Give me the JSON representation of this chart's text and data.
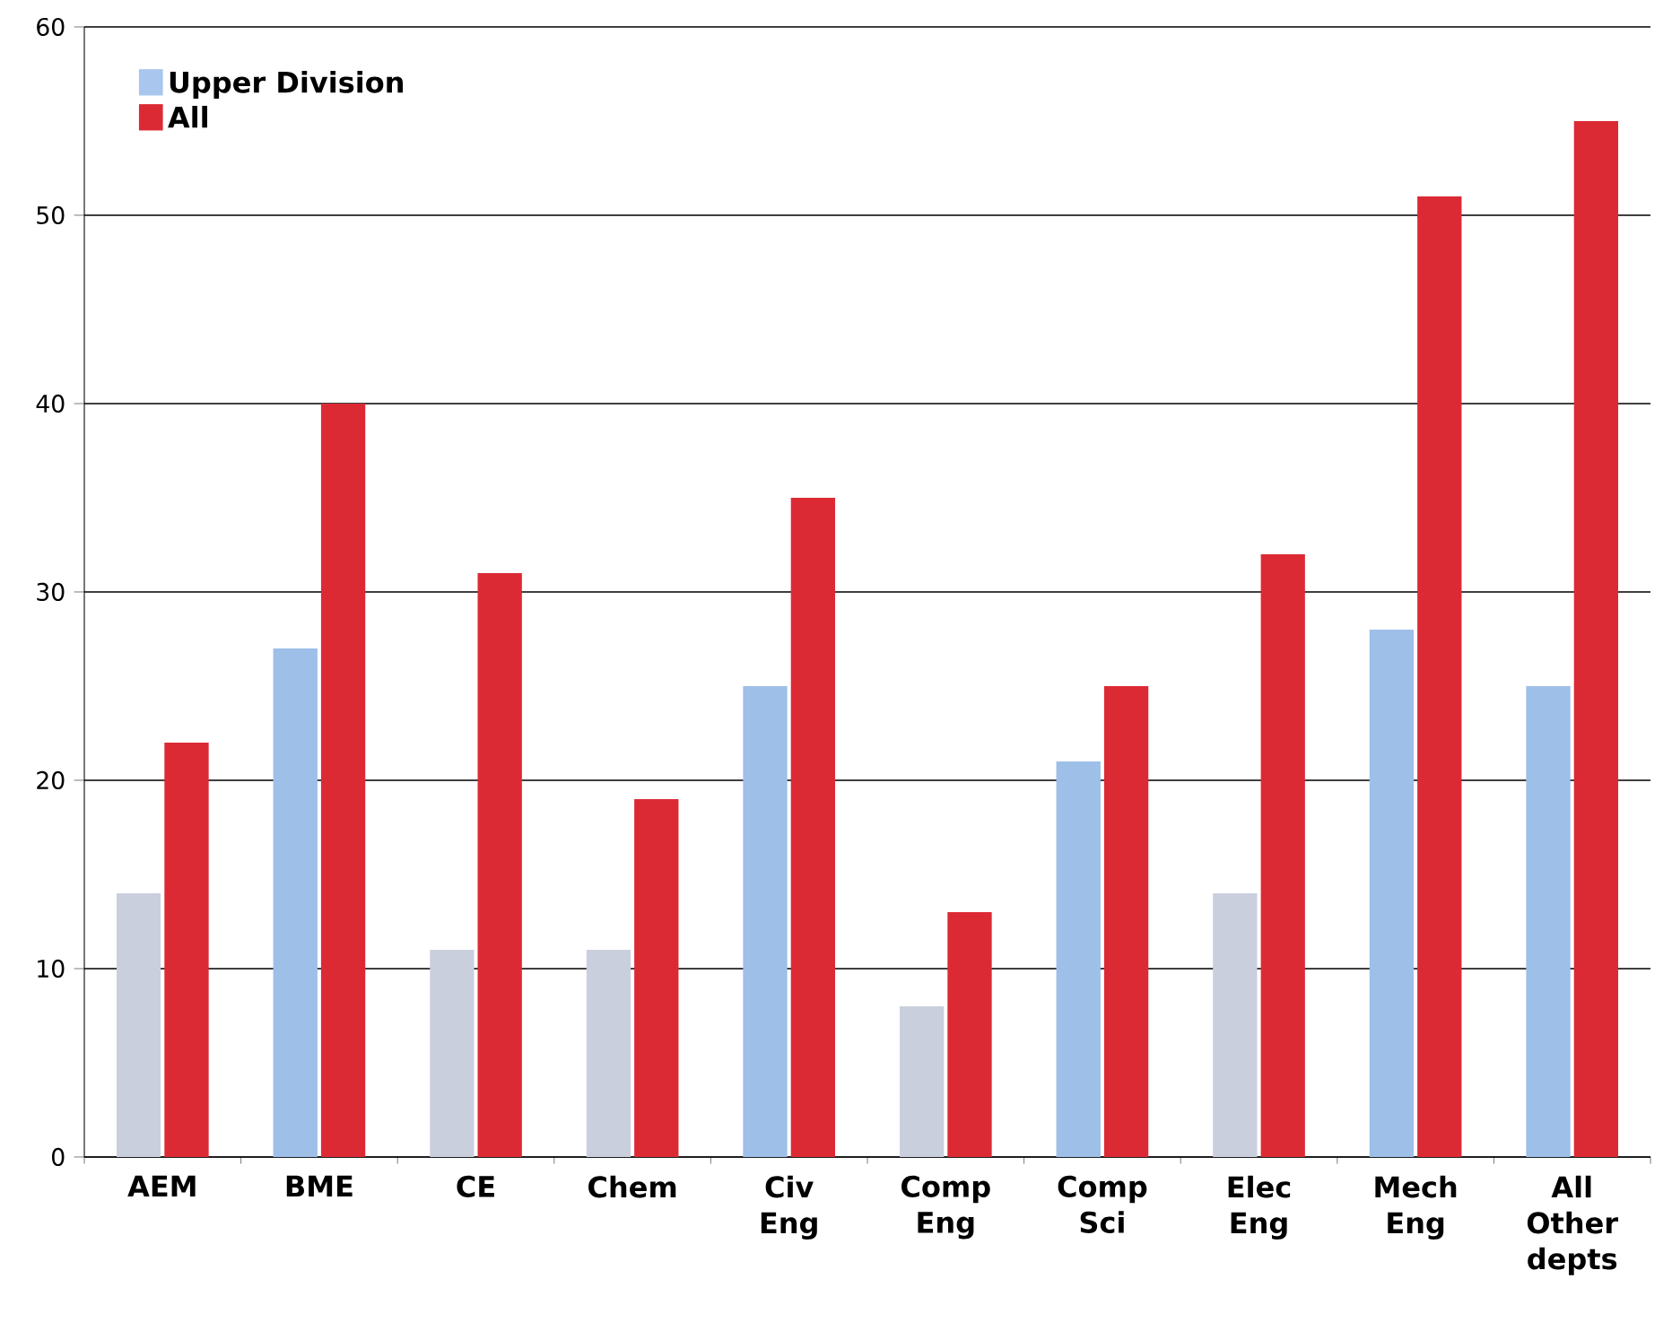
{
  "chart_data": {
    "type": "bar",
    "categories": [
      "AEM",
      "BME",
      "CE",
      "Chem",
      "Civ Eng",
      "Comp Eng",
      "Comp Sci",
      "Elec Eng",
      "Mech Eng",
      "All Other depts"
    ],
    "series": [
      {
        "name": "Upper Division",
        "color": "#a9c6ee",
        "colors": [
          "#c9cfdc",
          "#9dbfe8",
          "#c9cfdc",
          "#c9cfdc",
          "#9dbfe8",
          "#c9cfdc",
          "#9dbfe8",
          "#c9cfdc",
          "#9dbfe8",
          "#9dbfe8"
        ],
        "values": [
          14,
          27,
          11,
          11,
          25,
          8,
          21,
          14,
          28,
          25
        ]
      },
      {
        "name": "All",
        "color": "#dc2a35",
        "values": [
          22,
          40,
          31,
          19,
          35,
          13,
          25,
          32,
          51,
          55
        ]
      }
    ],
    "ylim": [
      0,
      60
    ],
    "yticks": [
      0,
      10,
      20,
      30,
      40,
      50,
      60
    ],
    "grid": "y",
    "legend": "top left"
  }
}
